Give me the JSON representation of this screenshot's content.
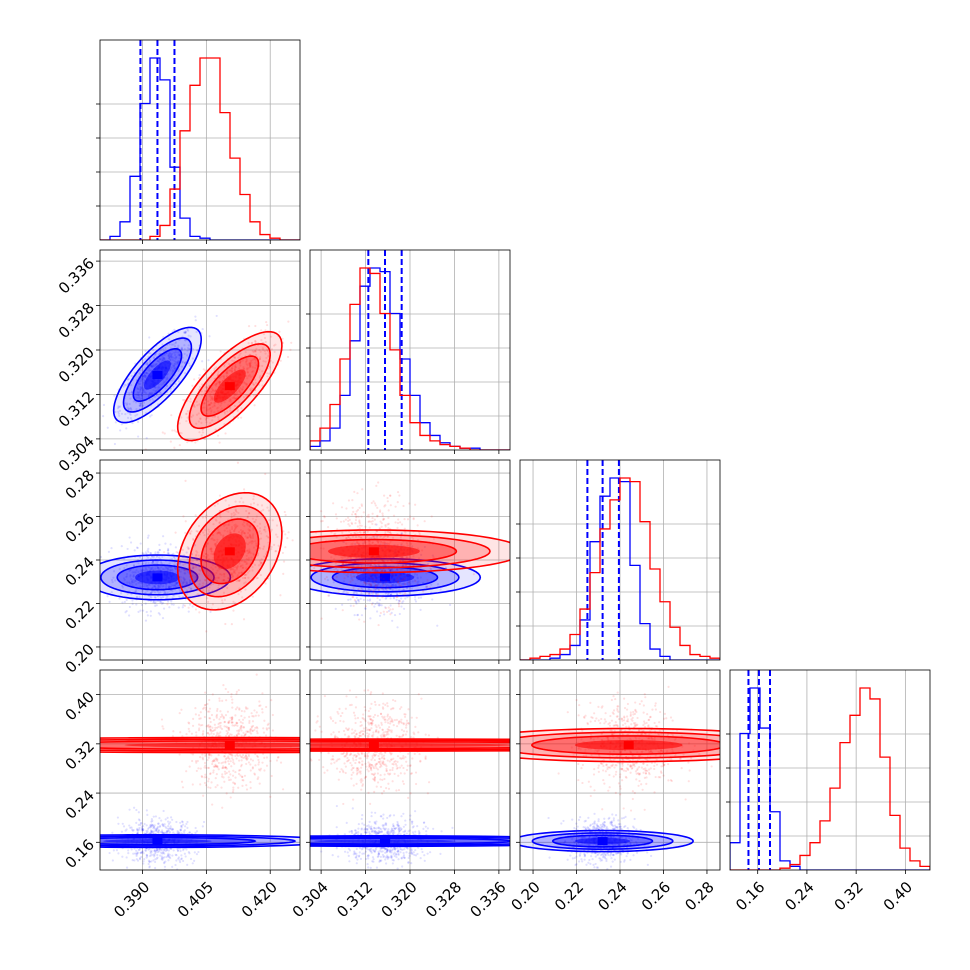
{
  "chart_data": {
    "type": "corner",
    "colors": {
      "blue": "#0000ff",
      "red": "#ff0000"
    },
    "grid": true,
    "params": [
      {
        "range": [
          0.38,
          0.427
        ],
        "ticks": [
          0.39,
          0.405,
          0.42
        ],
        "tick_labels": [
          "0.390",
          "0.405",
          "0.420"
        ]
      },
      {
        "range": [
          0.302,
          0.338
        ],
        "ticks": [
          0.304,
          0.312,
          0.32,
          0.328,
          0.336
        ],
        "tick_labels": [
          "0.304",
          "0.312",
          "0.320",
          "0.328",
          "0.336"
        ]
      },
      {
        "range": [
          0.194,
          0.286
        ],
        "ticks": [
          0.2,
          0.22,
          0.24,
          0.26,
          0.28
        ],
        "tick_labels": [
          "0.20",
          "0.22",
          "0.24",
          "0.26",
          "0.28"
        ]
      },
      {
        "range": [
          0.115,
          0.44
        ],
        "ticks": [
          0.16,
          0.24,
          0.32,
          0.4
        ],
        "tick_labels": [
          "0.16",
          "0.24",
          "0.32",
          "0.40"
        ]
      }
    ],
    "series": [
      {
        "color": "blue",
        "mean": [
          0.3935,
          0.3155,
          0.232,
          0.162
        ],
        "sd": [
          0.0042,
          0.0035,
          0.007,
          0.017
        ],
        "corr": [
          [
            1,
            0.75,
            0,
            0
          ],
          [
            0.75,
            1,
            0,
            0
          ],
          [
            0,
            0,
            1,
            0
          ],
          [
            0,
            0,
            0,
            1
          ]
        ],
        "quantiles": [
          [
            0.3895,
            0.3935,
            0.3975
          ],
          [
            0.3125,
            0.3155,
            0.3185
          ],
          [
            0.225,
            0.232,
            0.2395
          ],
          [
            0.145,
            0.162,
            0.18
          ]
        ],
        "hist": [
          [
            0,
            2,
            10,
            35,
            75,
            100,
            88,
            40,
            12,
            2,
            1,
            0,
            0,
            0,
            0,
            0,
            0,
            0,
            0,
            0
          ],
          [
            2,
            5,
            12,
            30,
            60,
            90,
            100,
            98,
            75,
            50,
            30,
            15,
            8,
            4,
            2,
            1,
            1,
            0,
            0,
            0
          ],
          [
            0,
            0,
            0,
            1,
            3,
            8,
            22,
            65,
            90,
            100,
            98,
            52,
            20,
            6,
            2,
            0,
            0,
            0,
            0,
            0
          ],
          [
            15,
            75,
            100,
            78,
            32,
            5,
            2,
            0,
            0,
            0,
            0,
            0,
            0,
            0,
            0,
            0,
            0,
            0,
            0,
            0
          ]
        ]
      },
      {
        "color": "red",
        "mean": [
          0.4105,
          0.3135,
          0.244,
          0.318
        ],
        "sd": [
          0.005,
          0.004,
          0.011,
          0.033
        ],
        "corr": [
          [
            1,
            0.75,
            0.3,
            0
          ],
          [
            0.75,
            1,
            0,
            0
          ],
          [
            0.3,
            0,
            1,
            0
          ],
          [
            0,
            0,
            0,
            1
          ]
        ],
        "quantiles": null,
        "hist": [
          [
            0,
            0,
            0,
            0,
            0,
            2,
            8,
            28,
            60,
            85,
            100,
            100,
            70,
            45,
            25,
            10,
            3,
            1,
            0,
            0
          ],
          [
            5,
            12,
            25,
            50,
            80,
            100,
            97,
            75,
            55,
            30,
            15,
            8,
            5,
            3,
            2,
            1,
            0,
            0,
            0,
            0
          ],
          [
            0,
            1,
            2,
            3,
            6,
            14,
            28,
            48,
            72,
            88,
            100,
            98,
            76,
            50,
            32,
            18,
            8,
            3,
            2,
            1
          ],
          [
            0,
            0,
            0,
            0,
            0,
            1,
            3,
            8,
            15,
            27,
            45,
            70,
            85,
            100,
            94,
            62,
            30,
            12,
            5,
            2
          ]
        ]
      }
    ]
  }
}
